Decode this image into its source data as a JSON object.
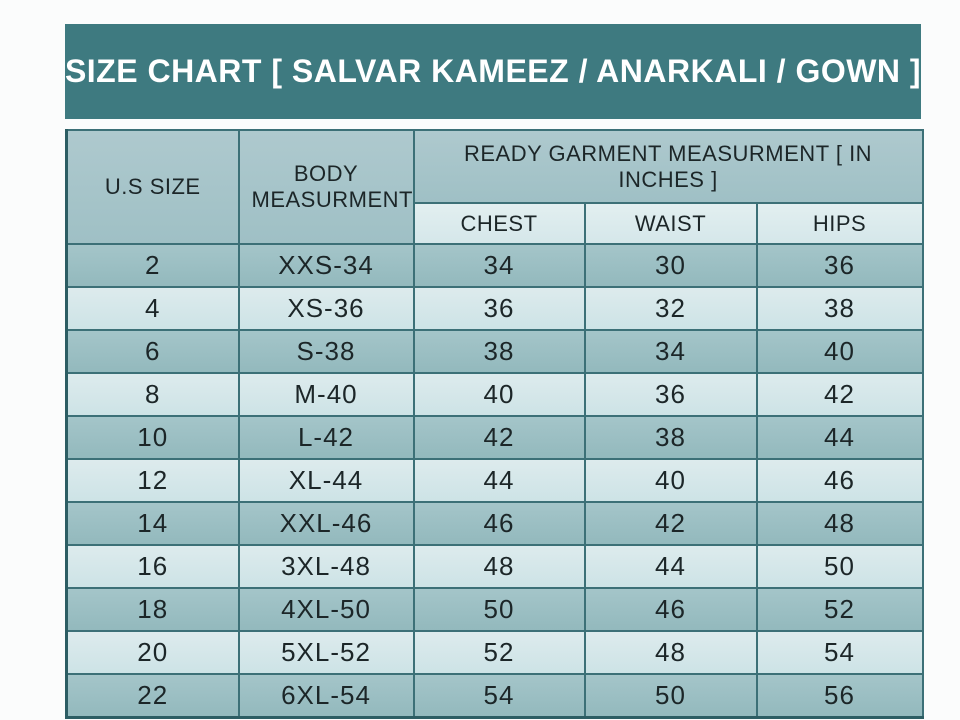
{
  "title": "SIZE CHART [ SALVAR KAMEEZ / ANARKALI / GOWN ]",
  "table": {
    "headers": {
      "us_size": "U.S SIZE",
      "body_measurement": "BODY MEASURMENT",
      "ready_garment": "READY GARMENT MEASURMENT [ IN INCHES ]",
      "chest": "CHEST",
      "waist": "WAIST",
      "hips": "HIPS"
    },
    "rows": [
      {
        "us_size": "2",
        "body": "XXS-34",
        "chest": "34",
        "waist": "30",
        "hips": "36"
      },
      {
        "us_size": "4",
        "body": "XS-36",
        "chest": "36",
        "waist": "32",
        "hips": "38"
      },
      {
        "us_size": "6",
        "body": "S-38",
        "chest": "38",
        "waist": "34",
        "hips": "40"
      },
      {
        "us_size": "8",
        "body": "M-40",
        "chest": "40",
        "waist": "36",
        "hips": "42"
      },
      {
        "us_size": "10",
        "body": "L-42",
        "chest": "42",
        "waist": "38",
        "hips": "44"
      },
      {
        "us_size": "12",
        "body": "XL-44",
        "chest": "44",
        "waist": "40",
        "hips": "46"
      },
      {
        "us_size": "14",
        "body": "XXL-46",
        "chest": "46",
        "waist": "42",
        "hips": "48"
      },
      {
        "us_size": "16",
        "body": "3XL-48",
        "chest": "48",
        "waist": "44",
        "hips": "50"
      },
      {
        "us_size": "18",
        "body": "4XL-50",
        "chest": "50",
        "waist": "46",
        "hips": "52"
      },
      {
        "us_size": "20",
        "body": "5XL-52",
        "chest": "52",
        "waist": "48",
        "hips": "54"
      },
      {
        "us_size": "22",
        "body": "6XL-54",
        "chest": "54",
        "waist": "50",
        "hips": "56"
      }
    ]
  },
  "colors": {
    "title_bg": "#3e7a80",
    "title_text": "#ffffff",
    "header_bg": "#a6c4c9",
    "subheader_bg": "#dcebed",
    "row_dark": "#9bbfc3",
    "row_light": "#d6e8ea",
    "grid": "#3c7077",
    "outer": "#2c5d63",
    "cell_text": "#1c2628",
    "page_bg": "#fbfcfc"
  }
}
